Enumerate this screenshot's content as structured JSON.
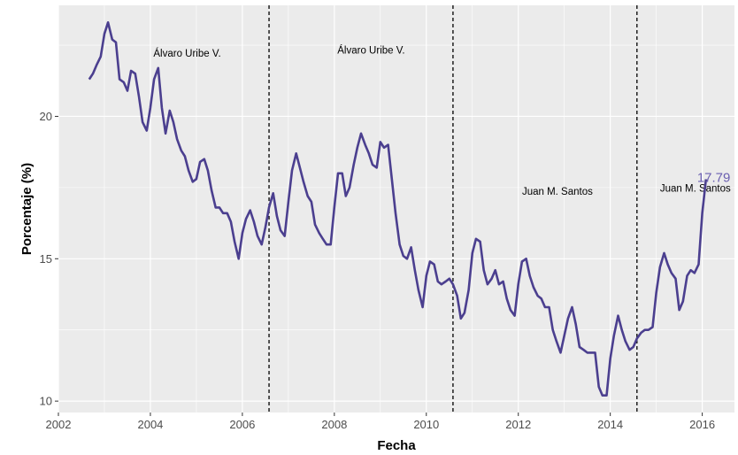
{
  "chart_data": {
    "type": "line",
    "xlabel": "Fecha",
    "ylabel": "Porcentaje (%)",
    "xlim": [
      2002.0,
      2016.7
    ],
    "ylim": [
      9.6,
      23.9
    ],
    "x_ticks": [
      2002,
      2004,
      2006,
      2008,
      2010,
      2012,
      2014,
      2016
    ],
    "y_ticks": [
      10,
      15,
      20
    ],
    "grid": true,
    "colors": {
      "line": "#4b3f8f",
      "end_label": "#6a5fb0",
      "panel": "#ebebeb",
      "grid": "#ffffff"
    },
    "vlines": [
      2006.58,
      2010.58,
      2014.58
    ],
    "annotations": [
      {
        "text": "Álvaro Uribe V.",
        "x": 2004.8,
        "y": 22.1
      },
      {
        "text": "Álvaro Uribe V.",
        "x": 2008.8,
        "y": 22.2
      },
      {
        "text": "Juan M. Santos",
        "x": 2012.85,
        "y": 17.25
      },
      {
        "text": "Juan M. Santos",
        "x": 2015.85,
        "y": 17.35
      }
    ],
    "end_label": {
      "text": "17.79",
      "x": 2016.25,
      "y": 17.7
    },
    "series": [
      {
        "x": [
          2002.67,
          2002.75,
          2002.83,
          2002.92,
          2003.0,
          2003.08,
          2003.17,
          2003.25,
          2003.33,
          2003.42,
          2003.5,
          2003.58,
          2003.67,
          2003.75,
          2003.83,
          2003.92,
          2004.0,
          2004.08,
          2004.17,
          2004.25,
          2004.33,
          2004.42,
          2004.5,
          2004.58,
          2004.67,
          2004.75,
          2004.83,
          2004.92,
          2005.0,
          2005.08,
          2005.17,
          2005.25,
          2005.33,
          2005.42,
          2005.5,
          2005.58,
          2005.67,
          2005.75,
          2005.83,
          2005.92,
          2006.0,
          2006.08,
          2006.17,
          2006.25,
          2006.33,
          2006.42,
          2006.5,
          2006.58,
          2006.67,
          2006.75,
          2006.83,
          2006.92,
          2007.0,
          2007.08,
          2007.17,
          2007.25,
          2007.33,
          2007.42,
          2007.5,
          2007.58,
          2007.67,
          2007.75,
          2007.83,
          2007.92,
          2008.0,
          2008.08,
          2008.17,
          2008.25,
          2008.33,
          2008.42,
          2008.5,
          2008.58,
          2008.67,
          2008.75,
          2008.83,
          2008.92,
          2009.0,
          2009.08,
          2009.17,
          2009.25,
          2009.33,
          2009.42,
          2009.5,
          2009.58,
          2009.67,
          2009.75,
          2009.83,
          2009.92,
          2010.0,
          2010.08,
          2010.17,
          2010.25,
          2010.33,
          2010.42,
          2010.5,
          2010.58,
          2010.67,
          2010.75,
          2010.83,
          2010.92,
          2011.0,
          2011.08,
          2011.17,
          2011.25,
          2011.33,
          2011.42,
          2011.5,
          2011.58,
          2011.67,
          2011.75,
          2011.83,
          2011.92,
          2012.0,
          2012.08,
          2012.17,
          2012.25,
          2012.33,
          2012.42,
          2012.5,
          2012.58,
          2012.67,
          2012.75,
          2012.83,
          2012.92,
          2013.0,
          2013.08,
          2013.17,
          2013.25,
          2013.33,
          2013.42,
          2013.5,
          2013.58,
          2013.67,
          2013.75,
          2013.83,
          2013.92,
          2014.0,
          2014.08,
          2014.17,
          2014.25,
          2014.33,
          2014.42,
          2014.5,
          2014.58,
          2014.67,
          2014.75,
          2014.83,
          2014.92,
          2015.0,
          2015.08,
          2015.17,
          2015.25,
          2015.33,
          2015.42,
          2015.5,
          2015.58,
          2015.67,
          2015.75,
          2015.83,
          2015.92,
          2016.0,
          2016.08
        ],
        "values": [
          21.3,
          21.5,
          21.8,
          22.1,
          22.9,
          23.3,
          22.7,
          22.6,
          21.3,
          21.2,
          20.9,
          21.6,
          21.5,
          20.7,
          19.8,
          19.5,
          20.3,
          21.3,
          21.7,
          20.3,
          19.4,
          20.2,
          19.8,
          19.2,
          18.8,
          18.6,
          18.1,
          17.7,
          17.8,
          18.4,
          18.5,
          18.1,
          17.4,
          16.8,
          16.8,
          16.6,
          16.6,
          16.3,
          15.6,
          15.0,
          15.9,
          16.4,
          16.7,
          16.3,
          15.8,
          15.5,
          16.1,
          16.8,
          17.3,
          16.5,
          16.0,
          15.8,
          17.0,
          18.1,
          18.7,
          18.2,
          17.7,
          17.2,
          17.0,
          16.2,
          15.9,
          15.7,
          15.5,
          15.5,
          16.8,
          18.0,
          18.0,
          17.2,
          17.5,
          18.3,
          18.9,
          19.4,
          19.0,
          18.7,
          18.3,
          18.2,
          19.1,
          18.9,
          19.0,
          17.8,
          16.6,
          15.5,
          15.1,
          15.0,
          15.4,
          14.6,
          13.9,
          13.3,
          14.4,
          14.9,
          14.8,
          14.2,
          14.1,
          14.2,
          14.3,
          14.1,
          13.7,
          12.9,
          13.1,
          13.9,
          15.2,
          15.7,
          15.6,
          14.6,
          14.1,
          14.3,
          14.6,
          14.1,
          14.2,
          13.6,
          13.2,
          13.0,
          14.1,
          14.9,
          15.0,
          14.4,
          14.0,
          13.7,
          13.6,
          13.3,
          13.3,
          12.5,
          12.1,
          11.7,
          12.3,
          12.9,
          13.3,
          12.7,
          11.9,
          11.8,
          11.7,
          11.7,
          11.7,
          10.5,
          10.2,
          10.2,
          11.5,
          12.3,
          13.0,
          12.5,
          12.1,
          11.8,
          11.9,
          12.2,
          12.4,
          12.5,
          12.5,
          12.6,
          13.8,
          14.7,
          15.2,
          14.8,
          14.5,
          14.3,
          13.2,
          13.5,
          14.4,
          14.6,
          14.5,
          14.8,
          16.6,
          17.79
        ]
      }
    ]
  }
}
